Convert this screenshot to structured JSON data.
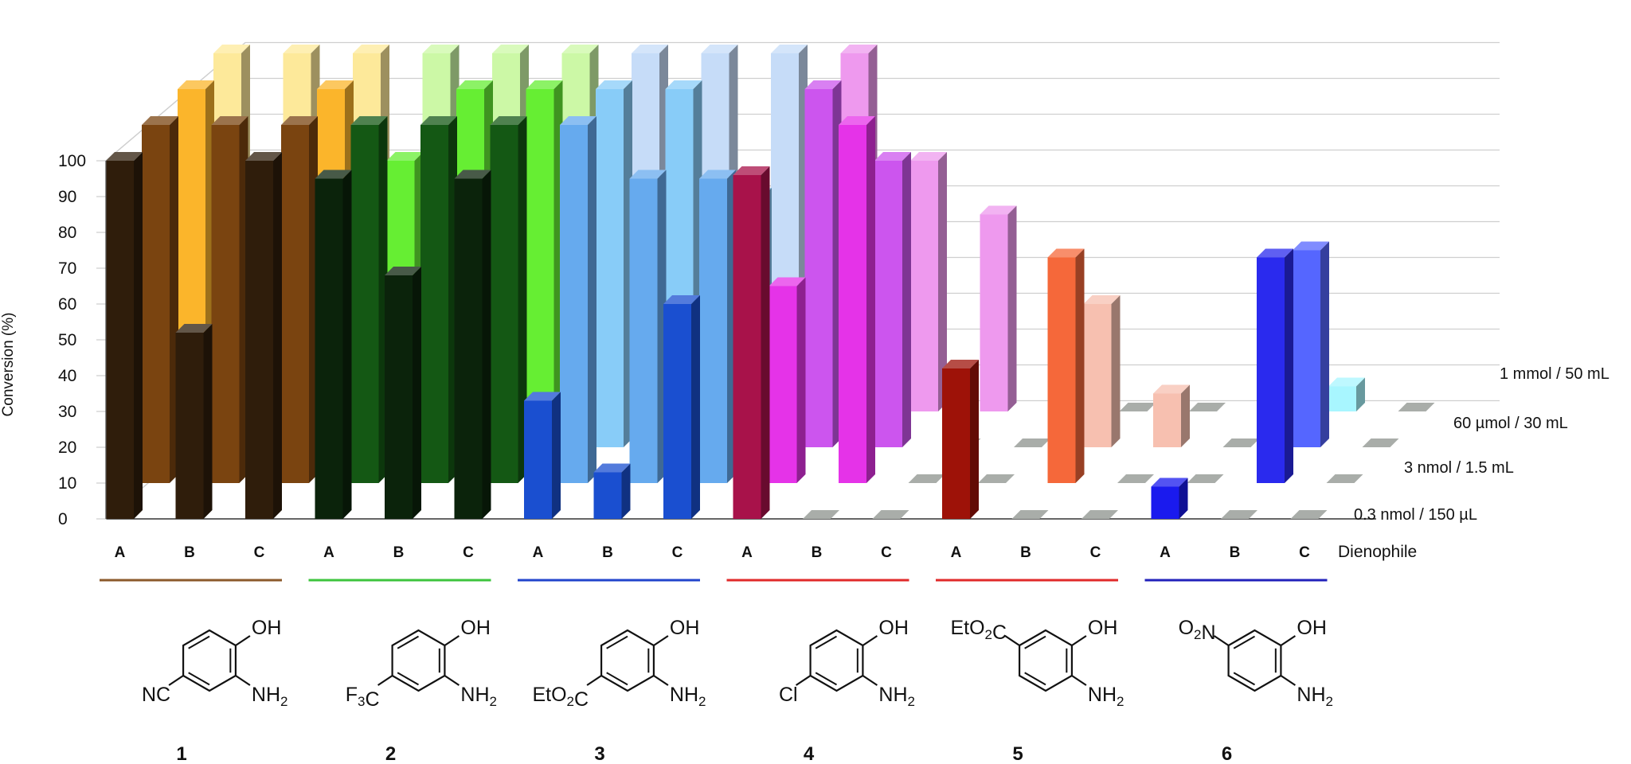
{
  "chart_data": {
    "type": "bar",
    "subtype": "3d-clustered-bar",
    "ylabel": "Conversion (%)",
    "ylim": [
      0,
      100
    ],
    "yticks": [
      "0",
      "10",
      "20",
      "30",
      "40",
      "50",
      "60",
      "70",
      "80",
      "90",
      "100"
    ],
    "grid": true,
    "xlabel": "Dienophile",
    "depth_labels": [
      "0.3 nmol / 150 µL",
      "3 nmol / 1.5 mL",
      "60 µmol / 30 mL",
      "1 mmol / 50 mL"
    ],
    "dienophiles": [
      "A",
      "B",
      "C"
    ],
    "compounds": [
      {
        "label": "1",
        "underline": "#8B5A2B",
        "substituent": "NC",
        "palette": [
          "#2f1d0b",
          "#7a4410",
          "#fbb52b",
          "#fde99a"
        ],
        "values": [
          [
            100,
            52,
            100
          ],
          [
            100,
            100,
            100
          ],
          [
            100,
            75,
            100
          ],
          [
            100,
            100,
            100
          ]
        ]
      },
      {
        "label": "2",
        "underline": "#3dc43d",
        "substituent": "F3C",
        "palette": [
          "#0b230b",
          "#145814",
          "#66ee33",
          "#ccf8a6"
        ],
        "values": [
          [
            95,
            68,
            95
          ],
          [
            100,
            100,
            100
          ],
          [
            80,
            100,
            100
          ],
          [
            100,
            100,
            100
          ]
        ]
      },
      {
        "label": "3",
        "underline": "#2244cc",
        "substituent": "EtO2C",
        "palette": [
          "#1a4fd0",
          "#66aaee",
          "#88ccf8",
          "#c6dcf8"
        ],
        "values": [
          [
            33,
            13,
            60
          ],
          [
            100,
            85,
            85
          ],
          [
            100,
            100,
            70
          ],
          [
            100,
            100,
            100
          ]
        ]
      },
      {
        "label": "4",
        "underline": "#e02a2a",
        "substituent": "Cl",
        "palette": [
          "#a8124a",
          "#e533e8",
          "#cc55ee",
          "#ee99ee"
        ],
        "values": [
          [
            96,
            0,
            0
          ],
          [
            55,
            100,
            0
          ],
          [
            100,
            80,
            0
          ],
          [
            100,
            70,
            55
          ]
        ]
      },
      {
        "label": "5",
        "underline": "#e02a2a",
        "substituent": "EtO2C",
        "substituent_position": "top",
        "palette": [
          "#9e1208",
          "#f5683a",
          "#f7c0b0",
          "#ffcfcf"
        ],
        "values": [
          [
            42,
            0,
            0
          ],
          [
            0,
            63,
            0
          ],
          [
            0,
            40,
            15
          ],
          [
            0,
            0,
            0
          ]
        ]
      },
      {
        "label": "6",
        "underline": "#2222bb",
        "substituent": "O2N",
        "substituent_position": "top",
        "palette": [
          "#1a1aee",
          "#2a2aee",
          "#5566ff",
          "#a8f6ff"
        ],
        "values": [
          [
            9,
            0,
            0
          ],
          [
            0,
            63,
            0
          ],
          [
            0,
            55,
            0
          ],
          [
            0,
            7,
            0
          ]
        ]
      }
    ]
  },
  "molecule": {
    "oh": "OH",
    "nh2": "NH2"
  }
}
